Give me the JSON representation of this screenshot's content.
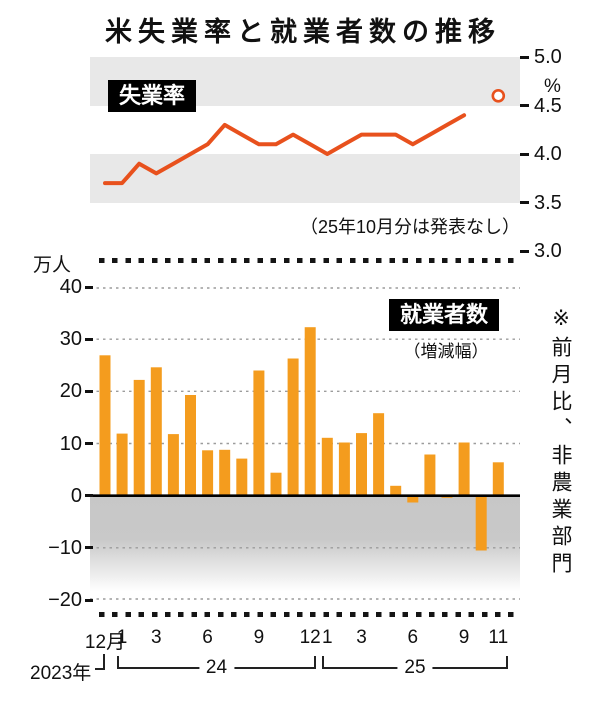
{
  "title": "米失業率と就業者数の推移",
  "unemployment": {
    "label": "失業率",
    "unit": "%",
    "note": "（25年10月分は発表なし）",
    "yticks": [
      "5.0",
      "4.5",
      "4.0",
      "3.5",
      "3.0"
    ]
  },
  "employment": {
    "label": "就業者数",
    "sublabel": "（増減幅）",
    "unit": "万人",
    "yticks": [
      "40",
      "30",
      "20",
      "10",
      "0",
      "−10",
      "−20"
    ]
  },
  "side_note": "※前月比、非農業部門",
  "x_axis": {
    "month_labels": [
      {
        "index": 0,
        "label": "12月"
      },
      {
        "index": 1,
        "label": "1"
      },
      {
        "index": 3,
        "label": "3"
      },
      {
        "index": 6,
        "label": "6"
      },
      {
        "index": 9,
        "label": "9"
      },
      {
        "index": 12,
        "label": "12"
      },
      {
        "index": 13,
        "label": "1"
      },
      {
        "index": 15,
        "label": "3"
      },
      {
        "index": 18,
        "label": "6"
      },
      {
        "index": 21,
        "label": "9"
      },
      {
        "index": 23,
        "label": "11"
      }
    ],
    "years": [
      "2023年",
      "24",
      "25"
    ]
  },
  "chart_data": [
    {
      "type": "line",
      "title": "失業率",
      "ylabel": "%",
      "ylim": [
        3.0,
        5.0
      ],
      "yticks": [
        5.0,
        4.5,
        4.0,
        3.5,
        3.0
      ],
      "x": [
        "2023/12",
        "2024/1",
        "2024/2",
        "2024/3",
        "2024/4",
        "2024/5",
        "2024/6",
        "2024/7",
        "2024/8",
        "2024/9",
        "2024/10",
        "2024/11",
        "2024/12",
        "2025/1",
        "2025/2",
        "2025/3",
        "2025/4",
        "2025/5",
        "2025/6",
        "2025/7",
        "2025/8",
        "2025/9"
      ],
      "values": [
        3.7,
        3.7,
        3.9,
        3.8,
        3.9,
        4.0,
        4.1,
        4.3,
        4.2,
        4.1,
        4.1,
        4.2,
        4.1,
        4.0,
        4.1,
        4.2,
        4.2,
        4.2,
        4.1,
        4.2,
        4.3,
        4.4
      ],
      "missing_months": [
        "2025/10"
      ],
      "note": "（25年10月分は発表なし）",
      "open_circle_point": {
        "month": "2025/11",
        "x_index": 23,
        "value": 4.6
      },
      "line_color": "#e8511d",
      "grid": "banded",
      "legend_position": "top-left"
    },
    {
      "type": "bar",
      "title": "就業者数（増減幅）",
      "ylabel": "万人",
      "ylim": [
        -20,
        40
      ],
      "yticks": [
        40,
        30,
        20,
        10,
        0,
        -10,
        -20
      ],
      "x": [
        "2023/12",
        "2024/1",
        "2024/2",
        "2024/3",
        "2024/4",
        "2024/5",
        "2024/6",
        "2024/7",
        "2024/8",
        "2024/9",
        "2024/10",
        "2024/11",
        "2024/12",
        "2025/1",
        "2025/2",
        "2025/3",
        "2025/4",
        "2025/5",
        "2025/6",
        "2025/7",
        "2025/8",
        "2025/9",
        "2025/10",
        "2025/11"
      ],
      "values": [
        26.9,
        11.9,
        22.2,
        24.6,
        11.8,
        19.3,
        8.7,
        8.8,
        7.1,
        24.0,
        4.4,
        26.3,
        32.3,
        11.1,
        10.2,
        12.0,
        15.8,
        1.9,
        -1.3,
        7.9,
        -0.4,
        10.2,
        -10.5,
        6.4
      ],
      "bar_color": "#f49c1e",
      "grid": "dotted",
      "legend_position": "top-right"
    }
  ]
}
